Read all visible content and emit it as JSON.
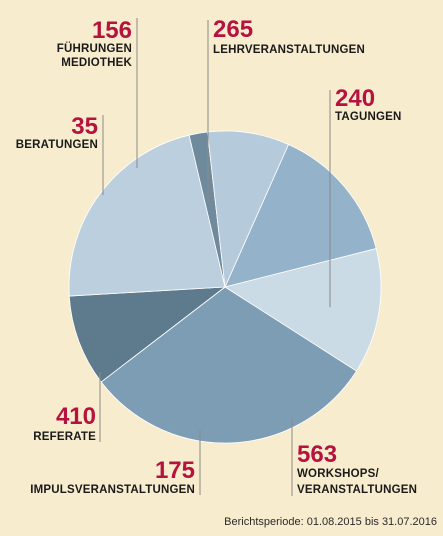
{
  "chart_data": {
    "type": "pie",
    "title": "",
    "slices": [
      {
        "label": "LEHRVERANSTALTUNGEN",
        "lines": [
          "LEHRVERANSTALTUNGEN"
        ],
        "value": 265,
        "color": "#94b3ca"
      },
      {
        "label": "TAGUNGEN",
        "lines": [
          "TAGUNGEN"
        ],
        "value": 240,
        "color": "#cbdbe6"
      },
      {
        "label": "WORKSHOPS/ VERANSTALTUNGEN",
        "lines": [
          "WORKSHOPS/",
          "VERANSTALTUNGEN"
        ],
        "value": 563,
        "color": "#7c9db4"
      },
      {
        "label": "IMPULSVERANSTALTUNGEN",
        "lines": [
          "IMPULSVERANSTALTUNGEN"
        ],
        "value": 175,
        "color": "#5e7a8d"
      },
      {
        "label": "REFERATE",
        "lines": [
          "REFERATE"
        ],
        "value": 410,
        "color": "#bccfdf"
      },
      {
        "label": "BERATUNGEN",
        "lines": [
          "BERATUNGEN"
        ],
        "value": 35,
        "color": "#6f8a9c"
      },
      {
        "label": "FÜHRUNGEN MEDIOTHEK",
        "lines": [
          "FÜHRUNGEN",
          "MEDIOTHEK"
        ],
        "value": 156,
        "color": "#b5cadb"
      }
    ]
  },
  "footer": "Berichtsperiode: 01.08.2015 bis 31.07.2016"
}
